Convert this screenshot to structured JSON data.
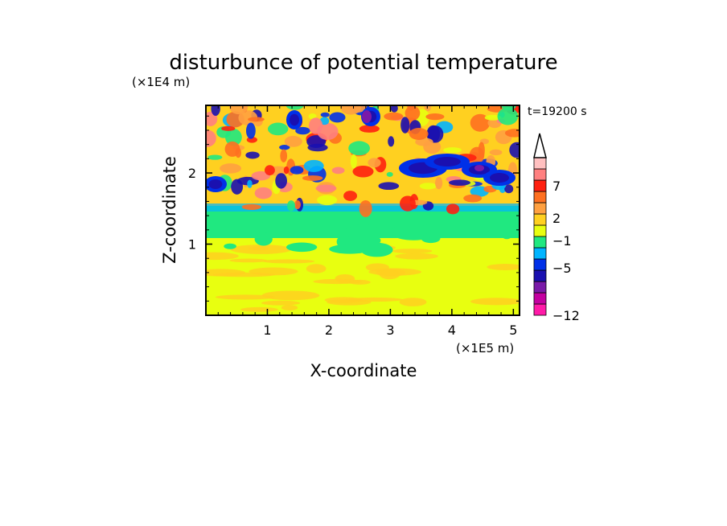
{
  "chart_data": {
    "type": "heatmap",
    "title": "disturbunce of potential temperature",
    "xlabel": "X-coordinate",
    "ylabel": "Z-coordinate",
    "x_scale_label": "(×1E5 m)",
    "y_scale_label": "(×1E4 m)",
    "time_label": "t=19200 s",
    "xlim": [
      0,
      5.1
    ],
    "ylim": [
      0,
      2.95
    ],
    "x_ticks": [
      "1",
      "2",
      "3",
      "4",
      "5"
    ],
    "y_ticks": [
      "1",
      "2"
    ],
    "x_tick_values": [
      1,
      2,
      3,
      4,
      5
    ],
    "y_tick_values": [
      1,
      2
    ],
    "colorbar": {
      "labels": [
        "7",
        "2",
        "−1",
        "−5",
        "−12"
      ],
      "colors": [
        "#ff1aa8",
        "#c400a0",
        "#7a1aa8",
        "#1a10b0",
        "#0030e8",
        "#00b4ff",
        "#20e880",
        "#e8ff10",
        "#ffd020",
        "#ffa040",
        "#ff7020",
        "#ff2010",
        "#ff8080",
        "#ffc0c0"
      ],
      "extend": "max"
    }
  }
}
